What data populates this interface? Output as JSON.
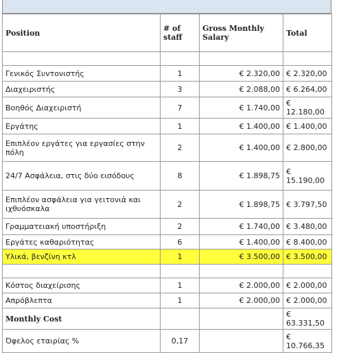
{
  "table": {
    "header": {
      "position": "Position",
      "staff": "# of staff",
      "salary": "Gross Monthly Salary",
      "total": "Total"
    },
    "rows": [
      {
        "position": "Γενικός Συντονιστής",
        "staff": "1",
        "salary": "€ 2.320,00",
        "total": "€ 2.320,00"
      },
      {
        "position": "Διαχειριστής",
        "staff": "3",
        "salary": "€ 2.088,00",
        "total": "€ 6.264,00"
      },
      {
        "position": "Βοηθός Διαχειριστή",
        "staff": "7",
        "salary": "€ 1.740,00",
        "total": "€ 12.180,00"
      },
      {
        "position": "Εργάτης",
        "staff": "1",
        "salary": "€ 1.400,00",
        "total": "€ 1.400,00"
      },
      {
        "position": "Επιπλέον εργάτες για εργασίες στην πόλη",
        "staff": "2",
        "salary": "€ 1.400,00",
        "total": "€ 2.800,00"
      },
      {
        "position": "24/7 Ασφάλεια, στις δύο εισόδους",
        "staff": "8",
        "salary": "€ 1.898,75",
        "total": "€ 15.190,00"
      },
      {
        "position": "Επιπλέον ασφάλεια για γειτονιά και ιχθυόσκαλα",
        "staff": "2",
        "salary": "€ 1.898,75",
        "total": "€ 3.797,50"
      },
      {
        "position": "Γραμματειακή υποστήριξη",
        "staff": "2",
        "salary": "€ 1.740,00",
        "total": "€ 3.480,00"
      },
      {
        "position": "Εργάτες καθαριότητας",
        "staff": "6",
        "salary": "€ 1.400,00",
        "total": "€ 8.400,00"
      },
      {
        "position": "Υλικά, βενζίνη κτλ",
        "staff": "1",
        "salary": "€ 3.500,00",
        "total": "€ 3.500,00"
      },
      {
        "position": "Κόστος διαχείρισης",
        "staff": "1",
        "salary": "€ 2.000,00",
        "total": "€ 2.000,00"
      },
      {
        "position": "Απρόβλεπτα",
        "staff": "1",
        "salary": "€ 2.000,00",
        "total": "€ 2.000,00"
      },
      {
        "position": "Monthly Cost",
        "total": "€ 63.331,50"
      },
      {
        "position": "Όφελος εταιρίας %",
        "staff": "0,17",
        "total": "€ 10.766,35"
      }
    ]
  }
}
